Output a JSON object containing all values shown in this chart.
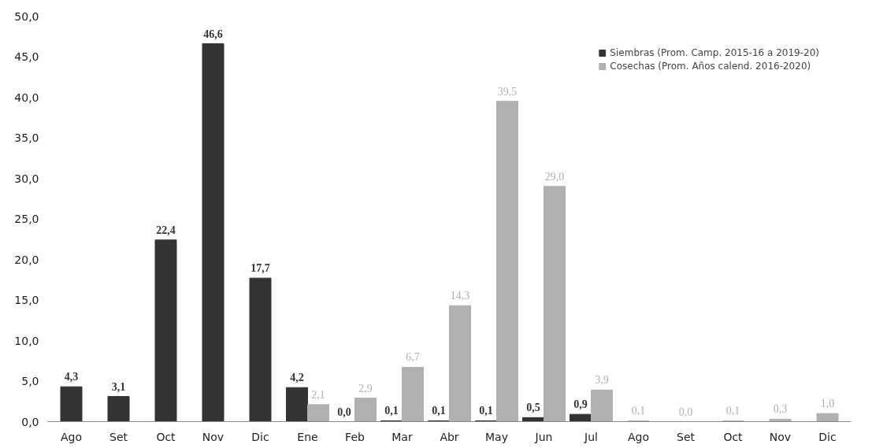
{
  "chart_data": {
    "type": "bar",
    "categories": [
      "Ago",
      "Set",
      "Oct",
      "Nov",
      "Dic",
      "Ene",
      "Feb",
      "Mar",
      "Abr",
      "May",
      "Jun",
      "Jul",
      "Ago",
      "Set",
      "Oct",
      "Nov",
      "Dic"
    ],
    "series": [
      {
        "name": "Siembras (Prom. Camp. 2015-16 a 2019-20)",
        "color": "#333333",
        "values": [
          4.3,
          3.1,
          22.4,
          46.6,
          17.7,
          4.2,
          0.0,
          0.1,
          0.1,
          0.1,
          0.5,
          0.9,
          null,
          null,
          null,
          null,
          null
        ],
        "value_labels": [
          "4,3",
          "3,1",
          "22,4",
          "46,6",
          "17,7",
          "4,2",
          "0,0",
          "0,1",
          "0,1",
          "0,1",
          "0,5",
          "0,9",
          null,
          null,
          null,
          null,
          null
        ]
      },
      {
        "name": "Cosechas (Prom. Años calend. 2016-2020)",
        "color": "#b0b0b0",
        "values": [
          null,
          null,
          null,
          null,
          null,
          2.1,
          2.9,
          6.7,
          14.3,
          39.5,
          29.0,
          3.9,
          0.1,
          0.0,
          0.1,
          0.3,
          1.0
        ],
        "value_labels": [
          null,
          null,
          null,
          null,
          null,
          "2,1",
          "2,9",
          "6,7",
          "14,3",
          "39,5",
          "29,0",
          "3,9",
          "0,1",
          "0,0",
          "0,1",
          "0,3",
          "1,0"
        ]
      }
    ],
    "ylim": [
      0,
      50
    ],
    "yticks": [
      {
        "value": 0,
        "label": "0,0"
      },
      {
        "value": 5,
        "label": "5,0"
      },
      {
        "value": 10,
        "label": "10,0"
      },
      {
        "value": 15,
        "label": "15,0"
      },
      {
        "value": 20,
        "label": "20,0"
      },
      {
        "value": 25,
        "label": "25,0"
      },
      {
        "value": 30,
        "label": "30,0"
      },
      {
        "value": 35,
        "label": "35,0"
      },
      {
        "value": 40,
        "label": "40,0"
      },
      {
        "value": 45,
        "label": "45,0"
      },
      {
        "value": 50,
        "label": "50,0"
      }
    ],
    "grid": false,
    "legend": "top right"
  }
}
